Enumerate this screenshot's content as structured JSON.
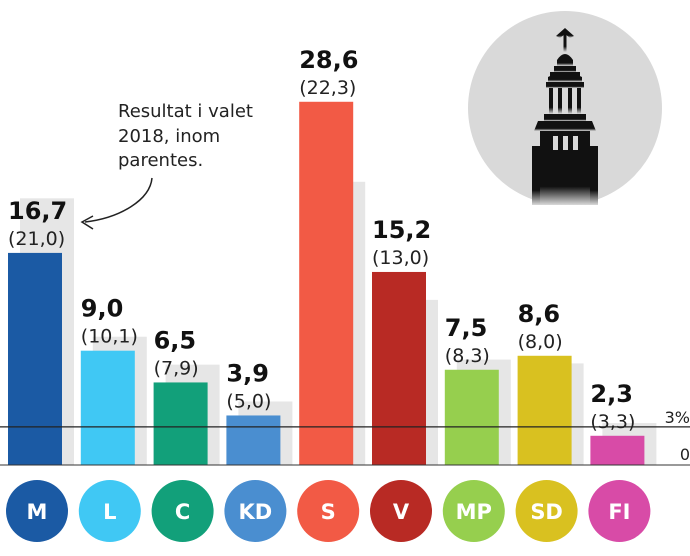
{
  "chart_data": {
    "type": "bar",
    "categories": [
      "M",
      "L",
      "C",
      "KD",
      "S",
      "V",
      "MP",
      "SD",
      "FI"
    ],
    "values": [
      16.7,
      9.0,
      6.5,
      3.9,
      28.6,
      15.2,
      7.5,
      8.6,
      2.3
    ],
    "value_labels": [
      "16,7",
      "9,0",
      "6,5",
      "3,9",
      "28,6",
      "15,2",
      "7,5",
      "8,6",
      "2,3"
    ],
    "previous_values": [
      21.0,
      10.1,
      7.9,
      5.0,
      22.3,
      13.0,
      8.3,
      8.0,
      3.3
    ],
    "previous_labels": [
      "(21,0)",
      "(10,1)",
      "(7,9)",
      "(5,0)",
      "(22,3)",
      "(13,0)",
      "(8,3)",
      "(8,0)",
      "(3,3)"
    ],
    "colors": [
      "#1b5aa4",
      "#40c8f4",
      "#12a07a",
      "#4a8ed0",
      "#f25a45",
      "#b82a24",
      "#96cf4e",
      "#d9c120",
      "#d84ba7"
    ],
    "previous_color": "#e6e6e6",
    "threshold": 3,
    "threshold_label": "3%",
    "zero_label": "0",
    "annotation": [
      "Resultat i valet",
      "2018, inom",
      "parentes."
    ],
    "ylim": [
      0,
      30
    ],
    "grid": false
  }
}
